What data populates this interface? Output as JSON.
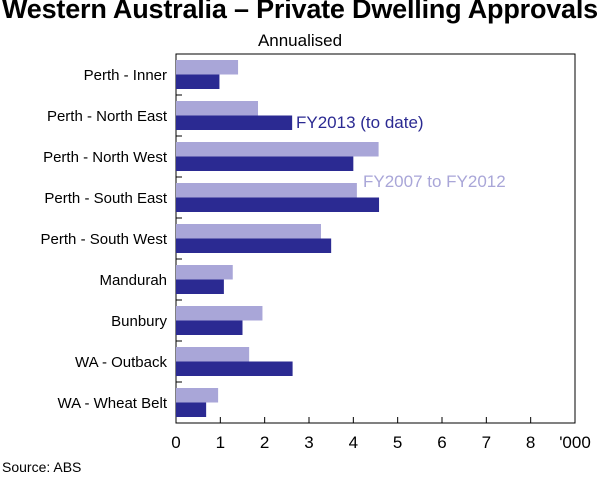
{
  "colors": {
    "fy2007_fy2012": "#a9a6d8",
    "fy2013": "#2b2a92",
    "axis": "#000000",
    "grid": "#000000"
  },
  "chart_data": {
    "type": "bar",
    "orientation": "horizontal",
    "title": "Western Australia – Private Dwelling Approvals",
    "subtitle": "Annualised",
    "categories": [
      "Perth - Inner",
      "Perth - North East",
      "Perth - North West",
      "Perth - South East",
      "Perth - South West",
      "Mandurah",
      "Bunbury",
      "WA - Outback",
      "WA - Wheat Belt"
    ],
    "series": [
      {
        "name": "FY2007 to FY2012",
        "color": "#a9a6d8",
        "values": [
          1.4,
          1.85,
          4.57,
          4.08,
          3.27,
          1.28,
          1.95,
          1.65,
          0.95
        ]
      },
      {
        "name": "FY2013 (to date)",
        "color": "#2b2a92",
        "values": [
          0.98,
          2.62,
          4.0,
          4.58,
          3.5,
          1.08,
          1.5,
          2.63,
          0.68
        ]
      }
    ],
    "xlim": [
      0,
      9
    ],
    "x_ticks": [
      "0",
      "1",
      "2",
      "3",
      "4",
      "5",
      "6",
      "7",
      "8"
    ],
    "x_unit": "'000",
    "grid": false,
    "legend": "inline labels"
  },
  "source": "Source: ABS"
}
